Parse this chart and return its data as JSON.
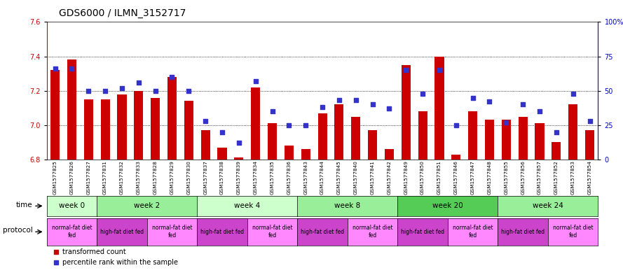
{
  "title": "GDS6000 / ILMN_3152717",
  "samples": [
    "GSM1577825",
    "GSM1577826",
    "GSM1577827",
    "GSM1577831",
    "GSM1577832",
    "GSM1577833",
    "GSM1577828",
    "GSM1577829",
    "GSM1577830",
    "GSM1577837",
    "GSM1577838",
    "GSM1577839",
    "GSM1577834",
    "GSM1577835",
    "GSM1577836",
    "GSM1577843",
    "GSM1577844",
    "GSM1577845",
    "GSM1577840",
    "GSM1577841",
    "GSM1577842",
    "GSM1577849",
    "GSM1577850",
    "GSM1577851",
    "GSM1577846",
    "GSM1577847",
    "GSM1577848",
    "GSM1577855",
    "GSM1577856",
    "GSM1577857",
    "GSM1577852",
    "GSM1577853",
    "GSM1577854"
  ],
  "bar_values": [
    7.32,
    7.38,
    7.15,
    7.15,
    7.18,
    7.2,
    7.16,
    7.28,
    7.14,
    6.97,
    6.87,
    6.81,
    7.22,
    7.01,
    6.88,
    6.86,
    7.07,
    7.12,
    7.05,
    6.97,
    6.86,
    7.35,
    7.08,
    7.4,
    6.83,
    7.08,
    7.03,
    7.03,
    7.05,
    7.01,
    6.9,
    7.12,
    6.97
  ],
  "blue_values": [
    66,
    66,
    50,
    50,
    52,
    56,
    50,
    60,
    50,
    28,
    20,
    12,
    57,
    35,
    25,
    25,
    38,
    43,
    43,
    40,
    37,
    65,
    48,
    65,
    25,
    45,
    42,
    27,
    40,
    35,
    20,
    48,
    28
  ],
  "ylim_left": [
    6.8,
    7.6
  ],
  "ylim_right": [
    0,
    100
  ],
  "left_ticks": [
    6.8,
    7.0,
    7.2,
    7.4,
    7.6
  ],
  "right_ticks": [
    0,
    25,
    50,
    75,
    100
  ],
  "bar_color": "#cc0000",
  "dot_color": "#3333cc",
  "bar_bottom": 6.8,
  "left_label_color": "#cc0000",
  "right_label_color": "#0000cc",
  "bar_width": 0.55,
  "time_groups_actual": [
    {
      "label": "week 0",
      "start": 0,
      "end": 3,
      "color": "#ccffcc"
    },
    {
      "label": "week 2",
      "start": 3,
      "end": 9,
      "color": "#99ee99"
    },
    {
      "label": "week 4",
      "start": 9,
      "end": 15,
      "color": "#ccffcc"
    },
    {
      "label": "week 8",
      "start": 15,
      "end": 21,
      "color": "#99ee99"
    },
    {
      "label": "week 20",
      "start": 21,
      "end": 27,
      "color": "#55cc55"
    },
    {
      "label": "week 24",
      "start": 27,
      "end": 33,
      "color": "#99ee99"
    }
  ],
  "protocol_groups_actual": [
    {
      "label": "normal-fat diet\nfed",
      "start": 0,
      "end": 3,
      "color": "#ff88ff"
    },
    {
      "label": "high-fat diet fed",
      "start": 3,
      "end": 6,
      "color": "#cc44cc"
    },
    {
      "label": "normal-fat diet\nfed",
      "start": 6,
      "end": 9,
      "color": "#ff88ff"
    },
    {
      "label": "high-fat diet fed",
      "start": 9,
      "end": 12,
      "color": "#cc44cc"
    },
    {
      "label": "normal-fat diet\nfed",
      "start": 12,
      "end": 15,
      "color": "#ff88ff"
    },
    {
      "label": "high-fat diet fed",
      "start": 15,
      "end": 18,
      "color": "#cc44cc"
    },
    {
      "label": "normal-fat diet\nfed",
      "start": 18,
      "end": 21,
      "color": "#ff88ff"
    },
    {
      "label": "high-fat diet fed",
      "start": 21,
      "end": 24,
      "color": "#cc44cc"
    },
    {
      "label": "normal-fat diet\nfed",
      "start": 24,
      "end": 27,
      "color": "#ff88ff"
    },
    {
      "label": "high-fat diet fed",
      "start": 27,
      "end": 30,
      "color": "#cc44cc"
    },
    {
      "label": "normal-fat diet\nfed",
      "start": 30,
      "end": 33,
      "color": "#ff88ff"
    }
  ]
}
